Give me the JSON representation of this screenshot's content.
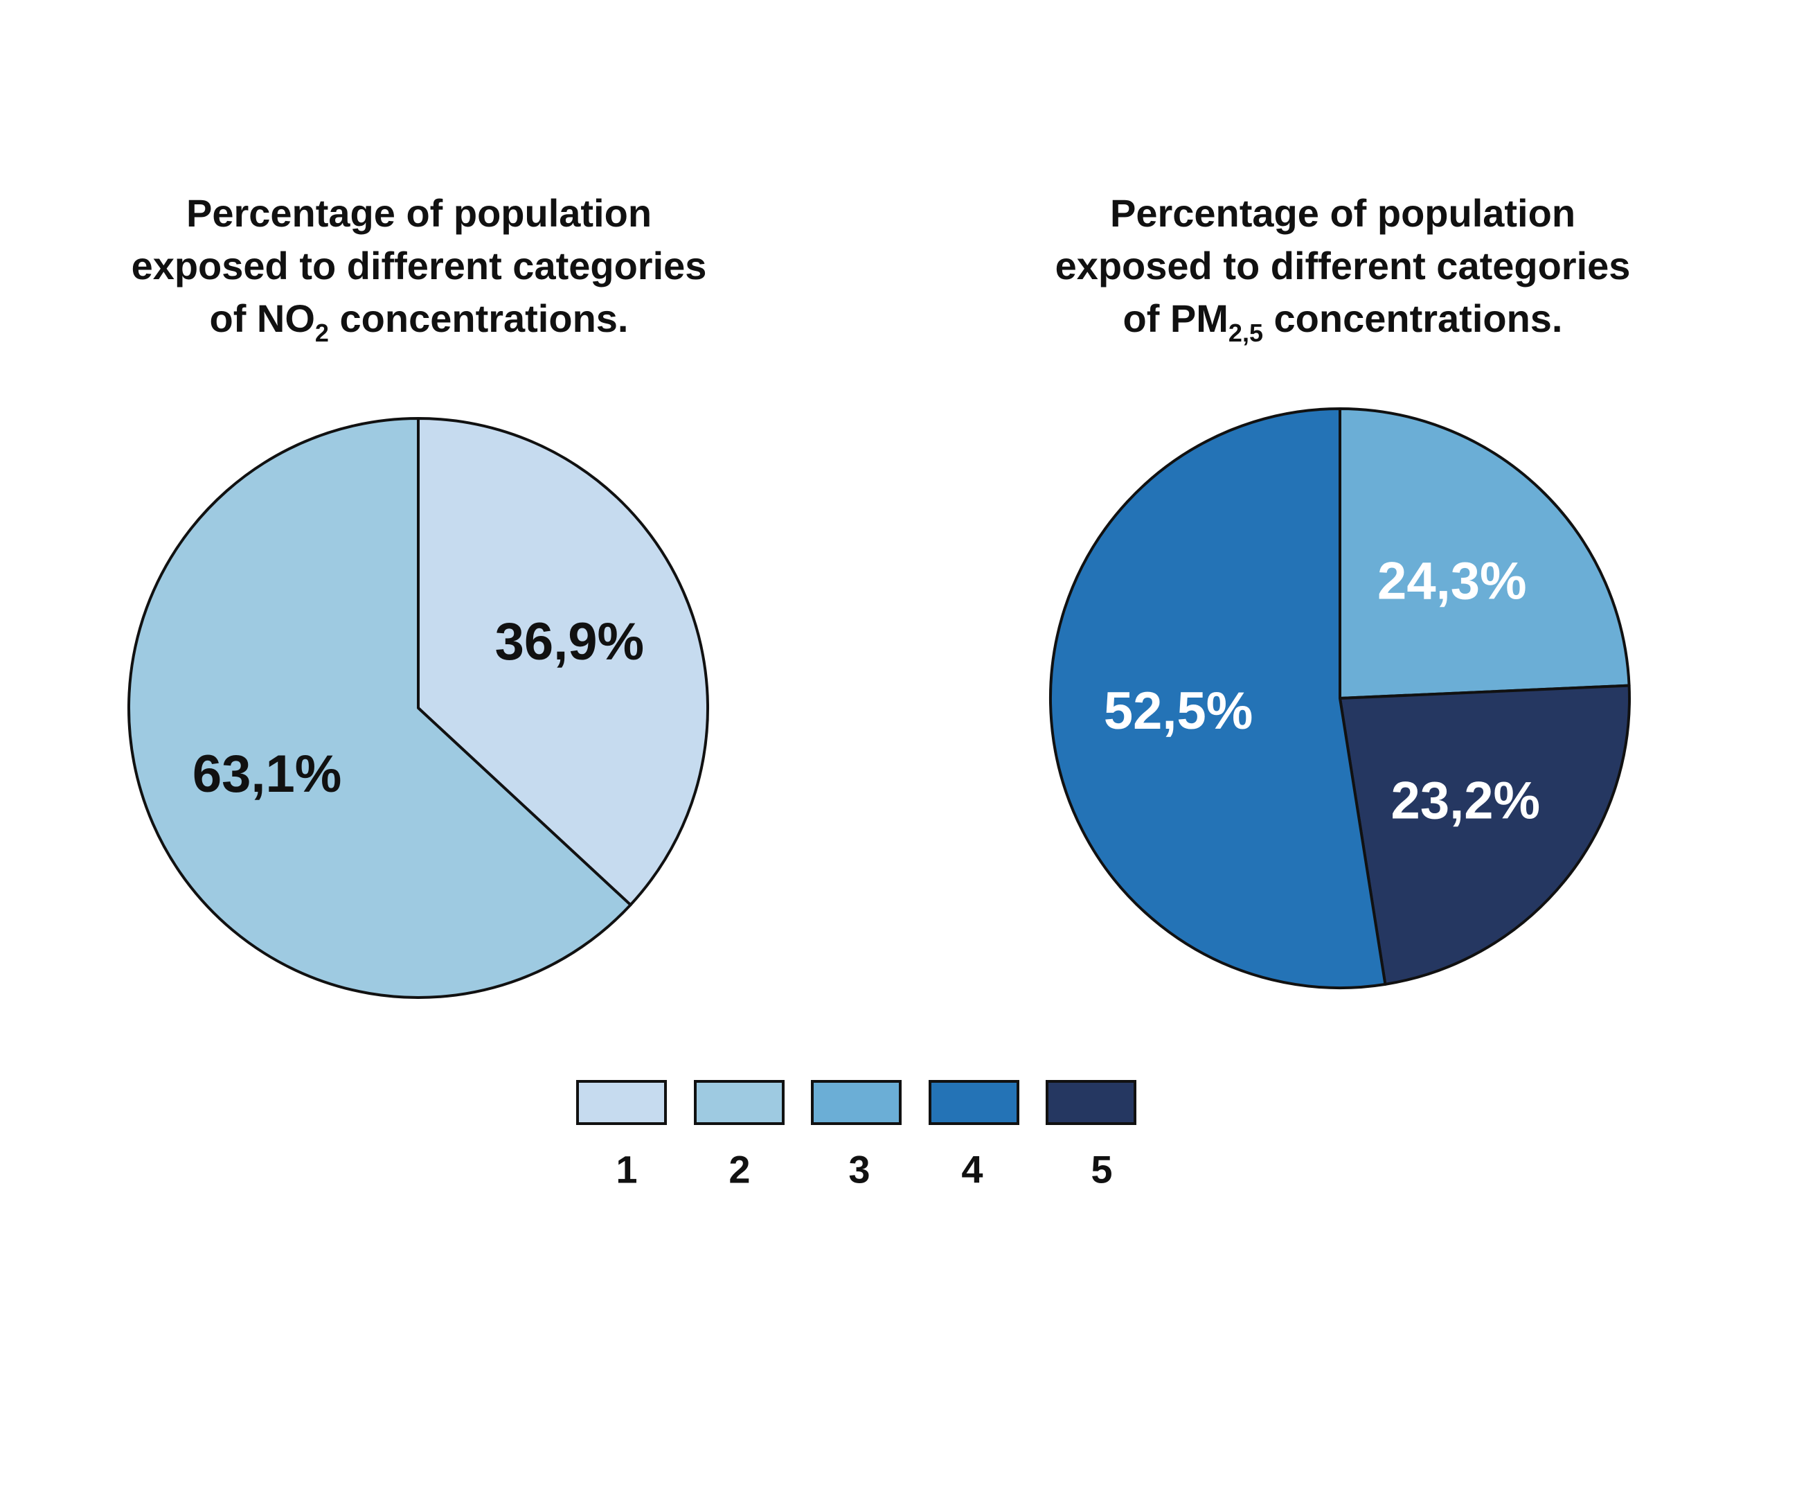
{
  "chart_data": [
    {
      "type": "pie",
      "title": {
        "line1": "Percentage of population",
        "line2": "exposed to different categories",
        "line3_pre": "of NO",
        "line3_sub": "2",
        "line3_post": " concentrations."
      },
      "slices": [
        {
          "category": "1",
          "value": 36.9,
          "label": "36,9%",
          "color": "#c6dbef",
          "label_color": "#111111"
        },
        {
          "category": "2",
          "value": 63.1,
          "label": "63,1%",
          "color": "#9ecae1",
          "label_color": "#111111"
        }
      ]
    },
    {
      "type": "pie",
      "title": {
        "line1": "Percentage of population",
        "line2": "exposed to different categories",
        "line3_pre": "of PM",
        "line3_sub": "2,5",
        "line3_post": " concentrations."
      },
      "slices": [
        {
          "category": "3",
          "value": 24.3,
          "label": "24,3%",
          "color": "#6baed6",
          "label_color": "#ffffff"
        },
        {
          "category": "5",
          "value": 23.2,
          "label": "23,2%",
          "color": "#253761",
          "label_color": "#ffffff"
        },
        {
          "category": "4",
          "value": 52.5,
          "label": "52,5%",
          "color": "#2473b6",
          "label_color": "#ffffff"
        }
      ]
    }
  ],
  "legend": {
    "placement": "bottom-center",
    "items": [
      {
        "label": "1",
        "color": "#c6dbef"
      },
      {
        "label": "2",
        "color": "#9ecae1"
      },
      {
        "label": "3",
        "color": "#6baed6"
      },
      {
        "label": "4",
        "color": "#2473b6"
      },
      {
        "label": "5",
        "color": "#253761"
      }
    ]
  }
}
